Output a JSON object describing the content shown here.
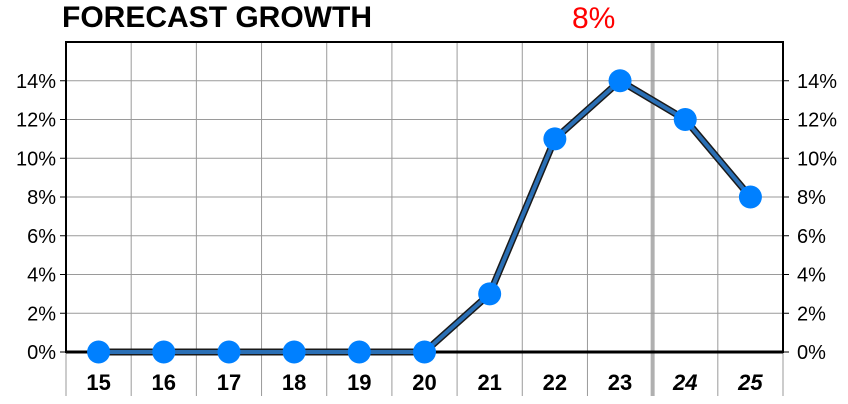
{
  "title": {
    "text": "FORECAST GROWTH",
    "value": "8%",
    "value_color": "#ff0000"
  },
  "chart_data": {
    "type": "line",
    "title": "FORECAST GROWTH",
    "x": [
      "15",
      "16",
      "17",
      "18",
      "19",
      "20",
      "21",
      "22",
      "23",
      "24",
      "25"
    ],
    "forecast_from_index": 9,
    "series": [
      {
        "values": [
          0,
          0,
          0,
          0,
          0,
          0,
          3,
          11,
          14,
          12,
          8
        ],
        "color": "#0080ff",
        "line_color": "#2a6fb5"
      }
    ],
    "ylim": [
      0,
      16
    ],
    "yticks": [
      "0%",
      "2%",
      "4%",
      "6%",
      "8%",
      "10%",
      "12%",
      "14%"
    ],
    "ytick_values": [
      0,
      2,
      4,
      6,
      8,
      10,
      12,
      14
    ],
    "y_axis_both_sides": true,
    "grid": true
  }
}
